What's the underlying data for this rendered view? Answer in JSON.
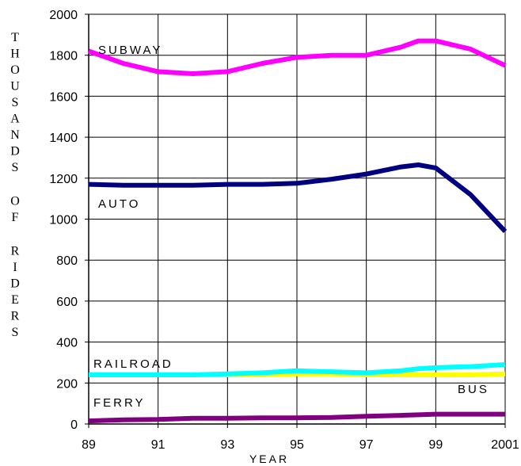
{
  "chart_data": {
    "type": "line",
    "xlabel": "YEAR",
    "ylabel": "THOUSANDS OF RIDERS",
    "xlim": [
      1989,
      2001
    ],
    "ylim": [
      0,
      2000
    ],
    "grid": true,
    "x_ticks": [
      "89",
      "91",
      "93",
      "95",
      "97",
      "99",
      "2001"
    ],
    "y_ticks": [
      "0",
      "200",
      "400",
      "600",
      "800",
      "1000",
      "1200",
      "1400",
      "1600",
      "1800",
      "2000"
    ],
    "x": [
      1989,
      1990,
      1991,
      1992,
      1993,
      1994,
      1995,
      1996,
      1997,
      1998,
      1998.5,
      1999,
      2000,
      2001
    ],
    "series": [
      {
        "name": "SUBWAY",
        "color": "#ff00ff",
        "values": [
          1820,
          1760,
          1720,
          1710,
          1720,
          1760,
          1790,
          1800,
          1800,
          1840,
          1870,
          1870,
          1830,
          1750
        ]
      },
      {
        "name": "AUTO",
        "color": "#000080",
        "values": [
          1170,
          1165,
          1165,
          1165,
          1170,
          1170,
          1175,
          1195,
          1220,
          1255,
          1265,
          1250,
          1120,
          940
        ]
      },
      {
        "name": "RAILROAD",
        "color": "#00ffff",
        "values": [
          240,
          240,
          240,
          240,
          245,
          250,
          260,
          255,
          250,
          260,
          270,
          275,
          280,
          290
        ]
      },
      {
        "name": "BUS",
        "color": "#ffff00",
        "values": [
          240,
          240,
          240,
          240,
          240,
          240,
          245,
          245,
          240,
          240,
          240,
          240,
          240,
          245
        ]
      },
      {
        "name": "FERRY",
        "color": "#800080",
        "values": [
          15,
          20,
          22,
          28,
          28,
          30,
          30,
          32,
          38,
          42,
          45,
          48,
          48,
          48
        ]
      }
    ]
  }
}
